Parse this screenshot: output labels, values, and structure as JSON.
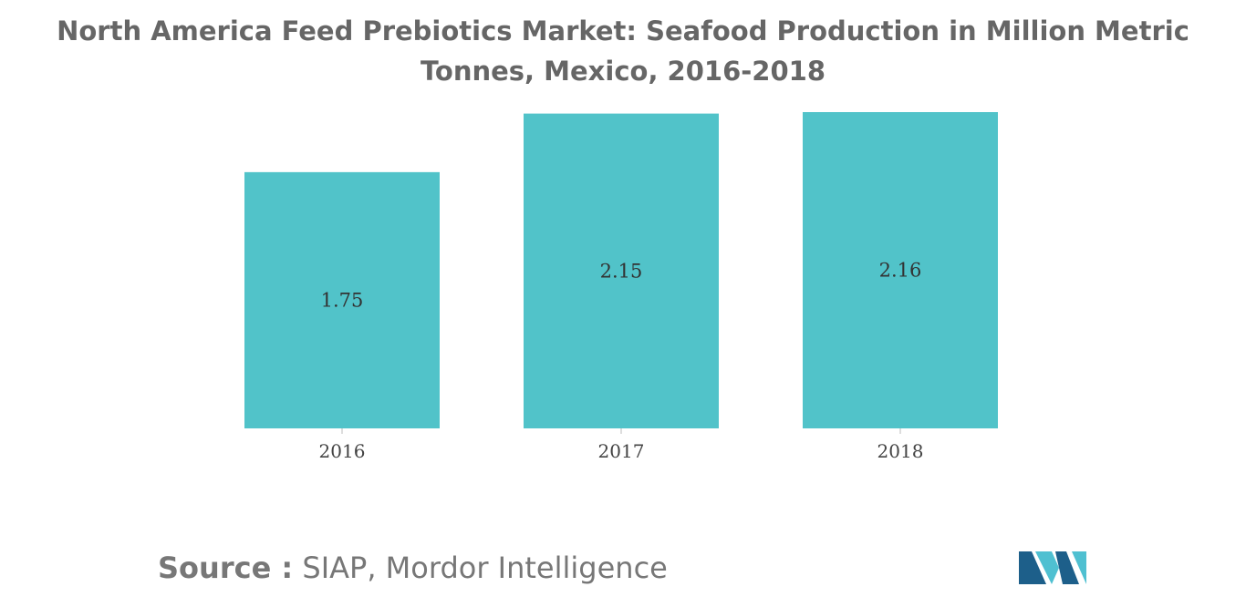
{
  "chart_data": {
    "type": "bar",
    "title": "North America Feed Prebiotics Market: Seafood Production in Million Metric Tonnes, Mexico, 2016-2018",
    "categories": [
      "2016",
      "2017",
      "2018"
    ],
    "values": [
      1.75,
      2.15,
      2.16
    ],
    "data_labels": [
      "1.75",
      "2.15",
      "2.16"
    ],
    "xlabel": "",
    "ylabel": "",
    "ylim": [
      0,
      2.16
    ],
    "grid": false,
    "legend": "none",
    "bar_color": "#51c3c9"
  },
  "source": {
    "prefix": "Source :",
    "text": "SIAP, Mordor Intelligence"
  },
  "logo": {
    "name": "mordor-intelligence-logo",
    "colors": [
      "#1d5f8a",
      "#4fc0d1"
    ]
  }
}
